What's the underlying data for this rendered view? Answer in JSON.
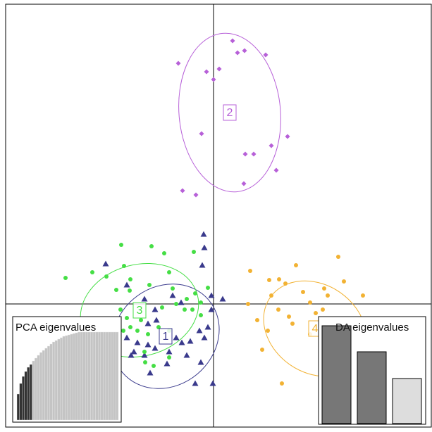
{
  "chart_data": {
    "type": "scatter",
    "xlim": [
      -5.9,
      6.18
    ],
    "ylim": [
      -3.5,
      8.52
    ],
    "series": [
      {
        "name": "1",
        "color": "#3a3a8c",
        "marker": "triangle",
        "x": [
          -0.28,
          -0.26,
          -0.32,
          -3.06,
          -2.46,
          -1.96,
          -1.66,
          -1.16,
          -0.06,
          0.26,
          -0.06,
          -1.62,
          -2.46,
          -2.16,
          -1.86,
          -1.66,
          -1.96,
          -2.26,
          -1.06,
          -0.9,
          -0.66,
          -0.4,
          -0.26,
          -0.16,
          -1.26,
          -0.76,
          -0.36,
          -1.32,
          -1.8,
          -0.52,
          -0.02,
          -2.34,
          -3.72,
          -0.92,
          -1.86
        ],
        "y": [
          1.98,
          1.6,
          1.1,
          1.14,
          0.54,
          0.14,
          -0.16,
          0.24,
          0.24,
          0.14,
          -0.16,
          -0.46,
          -0.96,
          -1.1,
          -1.16,
          -1.26,
          -1.46,
          -1.36,
          -0.96,
          -1.1,
          -1.06,
          -0.76,
          -0.96,
          -0.66,
          -1.36,
          -1.46,
          -1.66,
          -1.7,
          -1.96,
          -2.26,
          -2.26,
          -1.46,
          -2.22,
          0.04,
          -0.56
        ],
        "ellipse": {
          "cx": -1.36,
          "cy": -0.92,
          "rx": 1.6,
          "ry": 1.4,
          "angle": -40
        }
      },
      {
        "name": "2",
        "color": "#b760d8",
        "marker": "diamond",
        "x": [
          -1.0,
          -0.2,
          0.16,
          0,
          0.54,
          0.68,
          0.88,
          1.48,
          -0.34,
          2.1,
          0.9,
          1.14,
          1.64,
          1.78,
          0.86,
          -0.88,
          -0.5
        ],
        "y": [
          6.84,
          6.6,
          6.68,
          6.38,
          7.48,
          7.14,
          7.2,
          7.08,
          4.84,
          4.76,
          4.26,
          4.26,
          4.5,
          3.8,
          3.42,
          3.22,
          3.1
        ],
        "ellipse": {
          "cx": 0.46,
          "cy": 5.44,
          "rx": 1.44,
          "ry": 2.26,
          "angle": -5
        }
      },
      {
        "name": "3",
        "color": "#45de45",
        "marker": "circle",
        "x": [
          -2.62,
          -1.76,
          -1.4,
          -0.56,
          -3.44,
          -4.2,
          -2.54,
          -3.04,
          -2.36,
          -1.26,
          -2.76,
          -2.38,
          -1.82,
          -1.16,
          -0.52,
          -0.16,
          -0.76,
          -0.36,
          -2.64,
          -2.46,
          -2.06,
          -1.46,
          -1.06,
          -0.82,
          -0.6,
          -0.36,
          -2.56,
          -2.36,
          -2.16,
          -1.86,
          -1.56,
          -1.26,
          -3.46,
          -3.86,
          -2.86,
          -1.96,
          -1.26,
          -1.7,
          -1.94,
          -2.8,
          -3.18,
          -4.06,
          -3.64
        ],
        "y": [
          1.68,
          1.64,
          1.44,
          1.48,
          0.9,
          0.74,
          1.08,
          0.78,
          0.7,
          0.9,
          0.4,
          0.38,
          0.54,
          0.44,
          0.3,
          0.46,
          0.14,
          0.04,
          -0.16,
          -0.4,
          -0.46,
          -0.1,
          0,
          -0.16,
          -0.16,
          -0.32,
          -0.76,
          -0.66,
          -0.76,
          -0.86,
          -0.66,
          -0.76,
          -0.96,
          -1.16,
          -1.16,
          -1.36,
          -1.52,
          -1.76,
          -1.66,
          -2.08,
          -1.56,
          -1.56,
          -1.16
        ],
        "ellipse": {
          "cx": -2.1,
          "cy": -0.18,
          "rx": 1.7,
          "ry": 1.3,
          "angle": -15
        }
      },
      {
        "name": "4",
        "color": "#f2b233",
        "marker": "circle",
        "x": [
          1.04,
          1.58,
          1.86,
          2.04,
          2.34,
          3.54,
          3.7,
          4.24,
          3.14,
          3.24,
          1.64,
          1.84,
          2.14,
          2.24,
          2.54,
          2.74,
          2.9,
          3.1,
          3.34,
          3.64,
          3.94,
          4.34,
          3.14,
          3.34,
          3.54,
          3.04,
          1.54,
          1.38,
          1.94,
          0.98,
          1.24,
          3.88,
          2.74
        ],
        "y": [
          0.94,
          0.68,
          0.7,
          0.58,
          1.1,
          1.34,
          0.64,
          0.24,
          0.44,
          0.24,
          0.24,
          -0.16,
          -0.36,
          -0.56,
          0.34,
          0.04,
          -0.26,
          -0.16,
          -0.66,
          -0.96,
          -1.46,
          -1.16,
          -1.46,
          -1.76,
          -1.56,
          -1.76,
          -0.76,
          -1.3,
          -2.26,
          0,
          -0.46,
          -1.96,
          -0.86
        ],
        "ellipse": {
          "cx": 2.88,
          "cy": -0.7,
          "rx": 1.55,
          "ry": 1.25,
          "angle": 35
        }
      }
    ],
    "insets": [
      {
        "type": "bar",
        "title": "PCA eigenvalues",
        "ylim": [
          0,
          125
        ],
        "n_retained": 6,
        "retained_color": "#333333",
        "color": "#c4c4c4",
        "values": [
          37,
          52,
          62,
          69,
          75,
          79,
          84,
          88,
          92,
          96,
          99,
          102,
          105,
          108,
          111,
          113,
          115,
          117,
          119,
          120,
          121,
          122,
          123,
          124,
          125,
          125,
          125,
          125,
          125,
          125,
          125,
          125,
          125,
          125,
          125,
          125,
          125,
          125,
          125,
          125
        ]
      },
      {
        "type": "bar",
        "title": "DA eigenvalues",
        "ylim": [
          0,
          139
        ],
        "colors": [
          "#777777",
          "#777777",
          "#dddddd"
        ],
        "values": [
          139,
          102,
          64
        ]
      }
    ]
  }
}
